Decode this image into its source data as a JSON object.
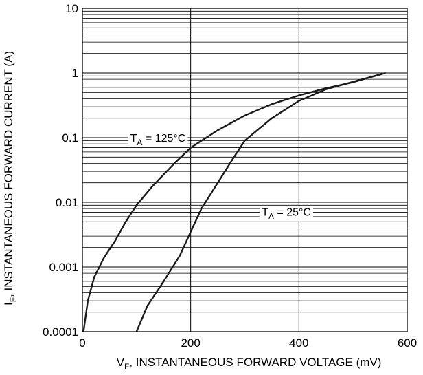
{
  "chart_data": {
    "type": "line",
    "title": "",
    "xlabel": {
      "main": "V",
      "sub": "F",
      "rest": ", INSTANTANEOUS FORWARD VOLTAGE (mV)"
    },
    "ylabel": {
      "main": "I",
      "sub": "F",
      "rest": ", INSTANTANEOUS FORWARD CURRENT (A)"
    },
    "xlim": [
      0,
      600
    ],
    "ylim": [
      0.0001,
      10
    ],
    "yscale": "log",
    "grid": true,
    "x_ticks": [
      "0",
      "200",
      "400",
      "600"
    ],
    "y_ticks": [
      "0.0001",
      "0.001",
      "0.01",
      "0.1",
      "1",
      "10"
    ],
    "series": [
      {
        "name": "T_A = 125°C",
        "annotation": {
          "main": "T",
          "sub": "A",
          "rest": " = 125°C"
        },
        "points": [
          [
            2,
            0.0001
          ],
          [
            10,
            0.0003
          ],
          [
            22,
            0.0007
          ],
          [
            40,
            0.0014
          ],
          [
            60,
            0.0025
          ],
          [
            80,
            0.005
          ],
          [
            100,
            0.009
          ],
          [
            130,
            0.018
          ],
          [
            170,
            0.04
          ],
          [
            200,
            0.07
          ],
          [
            250,
            0.13
          ],
          [
            300,
            0.22
          ],
          [
            350,
            0.33
          ],
          [
            400,
            0.45
          ],
          [
            450,
            0.58
          ],
          [
            500,
            0.72
          ],
          [
            560,
            1.0
          ]
        ]
      },
      {
        "name": "T_A = 25°C",
        "annotation": {
          "main": "T",
          "sub": "A",
          "rest": " = 25°C"
        },
        "points": [
          [
            100,
            0.0001
          ],
          [
            120,
            0.00025
          ],
          [
            150,
            0.0006
          ],
          [
            180,
            0.0015
          ],
          [
            200,
            0.0035
          ],
          [
            220,
            0.008
          ],
          [
            250,
            0.02
          ],
          [
            280,
            0.05
          ],
          [
            300,
            0.09
          ],
          [
            350,
            0.2
          ],
          [
            400,
            0.37
          ],
          [
            450,
            0.56
          ],
          [
            500,
            0.73
          ],
          [
            560,
            1.0
          ]
        ]
      }
    ]
  }
}
